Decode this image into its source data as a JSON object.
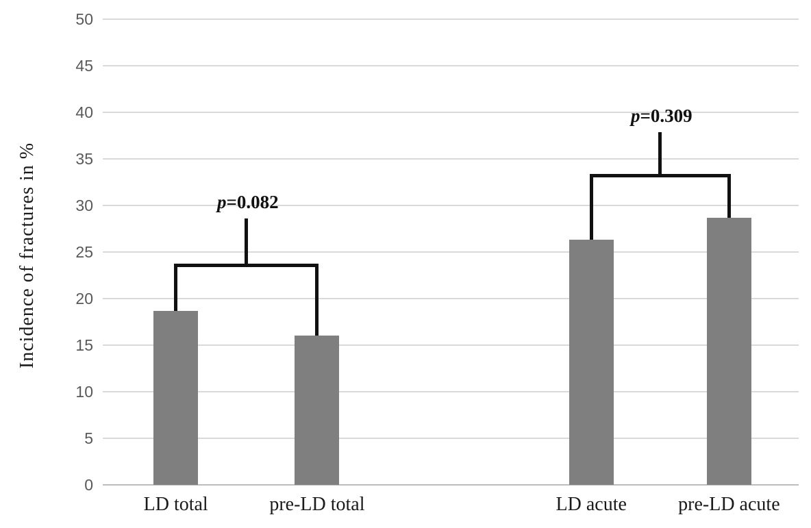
{
  "chart_data": {
    "type": "bar",
    "title": "",
    "xlabel": "",
    "ylabel": "Incidence of fractures in %",
    "ylim": [
      0,
      50
    ],
    "ytick_step": 5,
    "grid": true,
    "legend": false,
    "categories": [
      "LD total",
      "pre-LD total",
      "LD acute",
      "pre-LD acute"
    ],
    "values": [
      18.7,
      16.0,
      26.3,
      28.7
    ],
    "bar_color": "#7f7f7f",
    "gridline_color": "#d9d9d9",
    "axis_line_color": "#bdbdbd",
    "tick_label_color": "#595959",
    "annotations": [
      {
        "text": "p=0.082",
        "italic_part": "p",
        "rest": "=0.082",
        "between": [
          0,
          1
        ],
        "bracket_y": 23.6,
        "stem_top_y": 28.6
      },
      {
        "text": "p=0.309",
        "italic_part": "p",
        "rest": "=0.309",
        "between": [
          2,
          3
        ],
        "bracket_y": 33.2,
        "stem_top_y": 37.9
      }
    ],
    "layout": {
      "bar_centers_frac": [
        0.105,
        0.308,
        0.702,
        0.9
      ],
      "bar_width_frac": 0.064
    }
  }
}
